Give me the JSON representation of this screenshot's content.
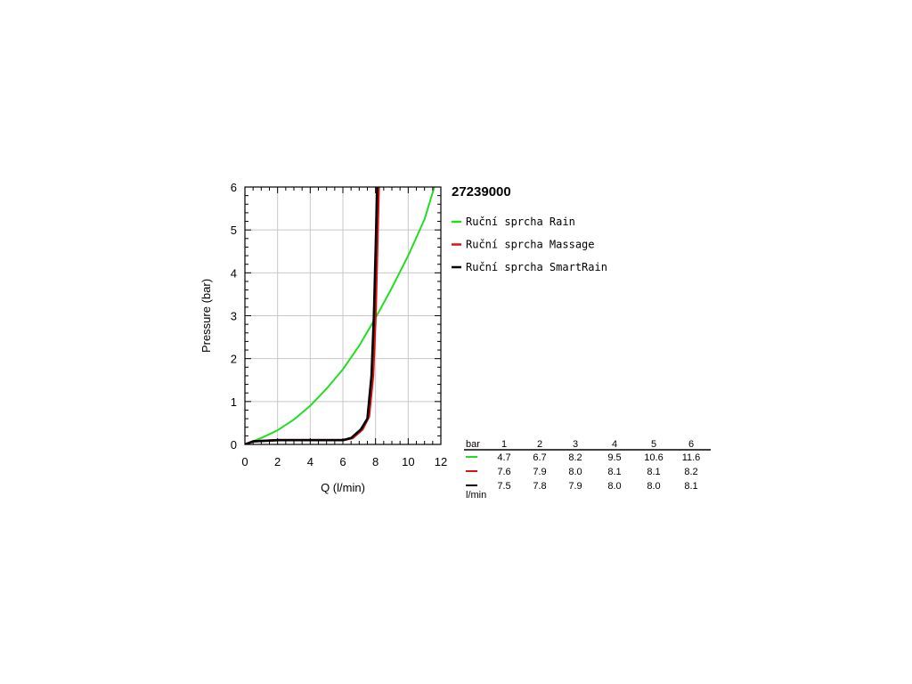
{
  "chart_data": {
    "type": "line",
    "title": "27239000",
    "xlabel": "Q (l/min)",
    "ylabel": "Pressure (bar)",
    "xlim": [
      0,
      12
    ],
    "ylim": [
      0,
      6
    ],
    "x_ticks": [
      "0",
      "2",
      "4",
      "6",
      "8",
      "10",
      "12"
    ],
    "y_ticks": [
      "0",
      "1",
      "2",
      "3",
      "4",
      "5",
      "6"
    ],
    "grid": true,
    "legend_position": "right",
    "series": [
      {
        "name": "Ruční sprcha Rain",
        "color": "#22dd22",
        "points": [
          [
            0,
            0
          ],
          [
            1,
            0.15
          ],
          [
            2,
            0.33
          ],
          [
            3,
            0.58
          ],
          [
            4,
            0.9
          ],
          [
            5,
            1.3
          ],
          [
            6,
            1.75
          ],
          [
            7,
            2.3
          ],
          [
            8,
            2.95
          ],
          [
            9,
            3.65
          ],
          [
            10,
            4.4
          ],
          [
            11,
            5.25
          ],
          [
            11.6,
            6
          ]
        ]
      },
      {
        "name": "Ruční sprcha Massage",
        "color": "#dd1111",
        "points": [
          [
            0,
            0
          ],
          [
            0.5,
            0.07
          ],
          [
            2,
            0.1
          ],
          [
            4,
            0.1
          ],
          [
            6,
            0.1
          ],
          [
            6.6,
            0.15
          ],
          [
            7.2,
            0.35
          ],
          [
            7.6,
            0.65
          ],
          [
            7.85,
            1.6
          ],
          [
            8.0,
            3.0
          ],
          [
            8.1,
            4.5
          ],
          [
            8.2,
            6
          ]
        ]
      },
      {
        "name": "Ruční sprcha SmartRain",
        "color": "#000000",
        "points": [
          [
            0,
            0
          ],
          [
            0.5,
            0.07
          ],
          [
            2,
            0.1
          ],
          [
            4,
            0.1
          ],
          [
            6,
            0.1
          ],
          [
            6.5,
            0.15
          ],
          [
            7.1,
            0.35
          ],
          [
            7.5,
            0.6
          ],
          [
            7.75,
            1.6
          ],
          [
            7.9,
            3.0
          ],
          [
            8.0,
            4.5
          ],
          [
            8.1,
            6
          ]
        ]
      }
    ],
    "table": {
      "header_label": "bar",
      "columns": [
        "1",
        "2",
        "3",
        "4",
        "5",
        "6"
      ],
      "rows": [
        {
          "color": "#22dd22",
          "values": [
            "4.7",
            "6.7",
            "8.2",
            "9.5",
            "10.6",
            "11.6"
          ]
        },
        {
          "color": "#dd1111",
          "values": [
            "7.6",
            "7.9",
            "8.0",
            "8.1",
            "8.1",
            "8.2"
          ]
        },
        {
          "color": "#000000",
          "values": [
            "7.5",
            "7.8",
            "7.9",
            "8.0",
            "8.0",
            "8.1"
          ]
        }
      ],
      "unit_label": "l/min"
    }
  }
}
